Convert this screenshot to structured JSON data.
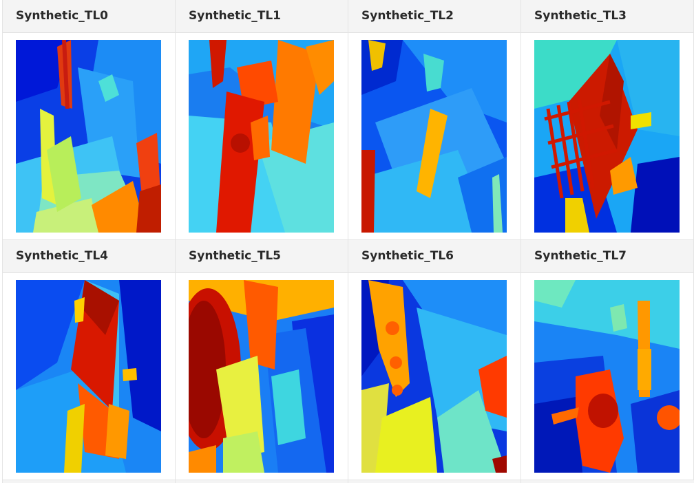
{
  "gallery": {
    "items": [
      {
        "title": "Synthetic_TL0",
        "image": "depth-map-thumbnail"
      },
      {
        "title": "Synthetic_TL1",
        "image": "depth-map-thumbnail"
      },
      {
        "title": "Synthetic_TL2",
        "image": "depth-map-thumbnail"
      },
      {
        "title": "Synthetic_TL3",
        "image": "depth-map-thumbnail"
      },
      {
        "title": "Synthetic_TL4",
        "image": "depth-map-thumbnail"
      },
      {
        "title": "Synthetic_TL5",
        "image": "depth-map-thumbnail"
      },
      {
        "title": "Synthetic_TL6",
        "image": "depth-map-thumbnail"
      },
      {
        "title": "Synthetic_TL7",
        "image": "depth-map-thumbnail"
      }
    ]
  },
  "colors": {
    "header_bg": "#f4f4f4",
    "border": "#e4e4e4",
    "jet_dark_blue": "#00008f",
    "jet_blue": "#0050ff",
    "jet_cyan": "#00d0ff",
    "jet_yellow": "#ffee00",
    "jet_orange": "#ff7a00",
    "jet_red": "#e02000",
    "jet_dark_red": "#8f0000"
  }
}
